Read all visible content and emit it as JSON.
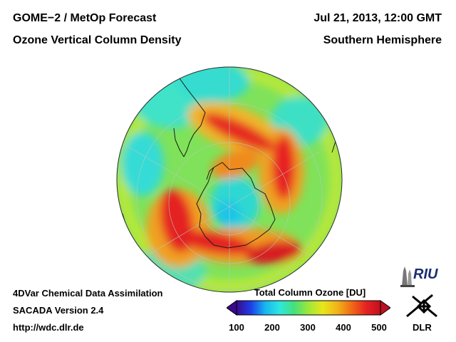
{
  "header": {
    "left_line1": "GOME−2 / MetOp Forecast",
    "left_line2": "Ozone Vertical Column Density",
    "right_line1": "Jul 21, 2013, 12:00 GMT",
    "right_line2": "Southern Hemisphere"
  },
  "footer": {
    "line1": "4DVar Chemical Data Assimilation",
    "line2": "SACADA Version 2.4",
    "line3": "http://wdc.dlr.de"
  },
  "colorbar": {
    "title": "Total Column Ozone [DU]",
    "ticks": [
      "100",
      "200",
      "300",
      "400",
      "500"
    ],
    "min": 100,
    "max": 500,
    "colors": [
      "#3a0a8c",
      "#1e3ee8",
      "#18b6f0",
      "#2ee6e0",
      "#45e07a",
      "#9ee83a",
      "#e8e61c",
      "#f2b318",
      "#f06a16",
      "#e62222",
      "#c01020"
    ]
  },
  "logos": {
    "riu_text": "RIU",
    "dlr_text": "DLR"
  },
  "icons": {
    "colorbar_left_arrow": "triangle-left-icon",
    "colorbar_right_arrow": "triangle-right-icon",
    "riu_logo": "riu-logo-icon",
    "dlr_logo": "dlr-logo-icon"
  },
  "map": {
    "projection": "orthographic south polar",
    "parameter": "total column ozone",
    "units": "DU"
  }
}
